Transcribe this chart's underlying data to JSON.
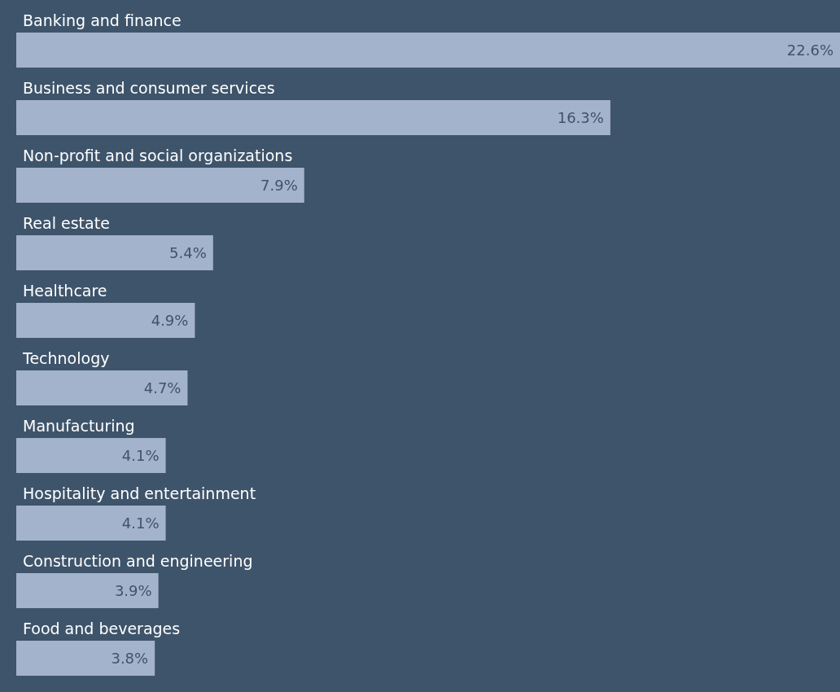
{
  "chart_data": {
    "type": "bar",
    "orientation": "horizontal",
    "categories": [
      "Banking and finance",
      "Business and consumer services",
      "Non-profit and social organizations",
      "Real estate",
      "Healthcare",
      "Technology",
      "Manufacturing",
      "Hospitality and entertainment",
      "Construction and engineering",
      "Food and beverages"
    ],
    "values": [
      22.6,
      16.3,
      7.9,
      5.4,
      4.9,
      4.7,
      4.1,
      4.1,
      3.9,
      3.8
    ],
    "value_labels": [
      "22.6%",
      "16.3%",
      "7.9%",
      "5.4%",
      "4.9%",
      "4.7%",
      "4.1%",
      "4.1%",
      "3.9%",
      "3.8%"
    ],
    "color": "#a3b3cb"
  }
}
